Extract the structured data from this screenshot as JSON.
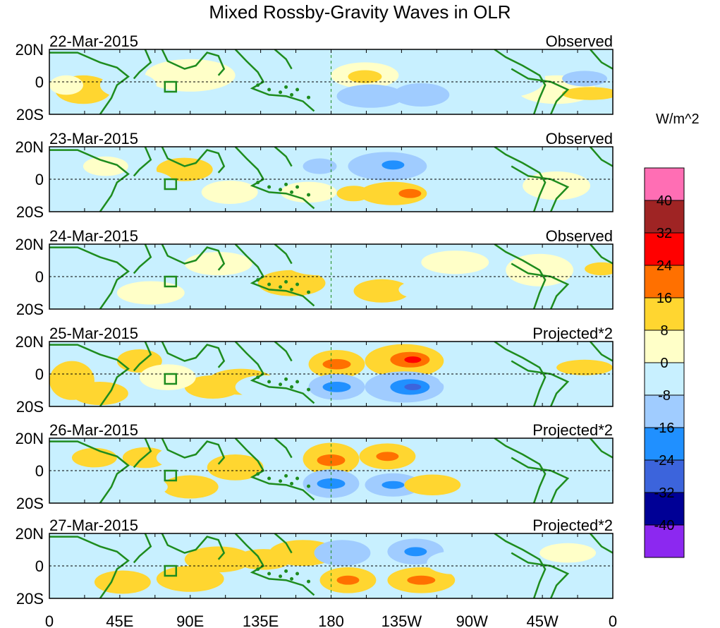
{
  "title": "Mixed Rossby-Gravity Waves in OLR",
  "units": "W/m^2",
  "lat_labels": [
    "20N",
    "0",
    "20S"
  ],
  "lon_labels": [
    "0",
    "45E",
    "90E",
    "135E",
    "180",
    "135W",
    "90W",
    "45W",
    "0"
  ],
  "panels": [
    {
      "date": "22-Mar-2015",
      "kind": "Observed"
    },
    {
      "date": "23-Mar-2015",
      "kind": "Observed"
    },
    {
      "date": "24-Mar-2015",
      "kind": "Observed"
    },
    {
      "date": "25-Mar-2015",
      "kind": "Projected*2"
    },
    {
      "date": "26-Mar-2015",
      "kind": "Projected*2"
    },
    {
      "date": "27-Mar-2015",
      "kind": "Projected*2"
    }
  ],
  "colorbar": {
    "labels": [
      "40",
      "32",
      "24",
      "16",
      "8",
      "0",
      "-8",
      "-16",
      "-24",
      "-32",
      "-40"
    ],
    "colors": [
      "#ff6eb4",
      "#9f2424",
      "#ff0000",
      "#ff7000",
      "#ffd630",
      "#ffffc8",
      "#c8f0ff",
      "#a0ccff",
      "#2090ff",
      "#3c64dc",
      "#000096",
      "#8c28f0"
    ]
  }
}
